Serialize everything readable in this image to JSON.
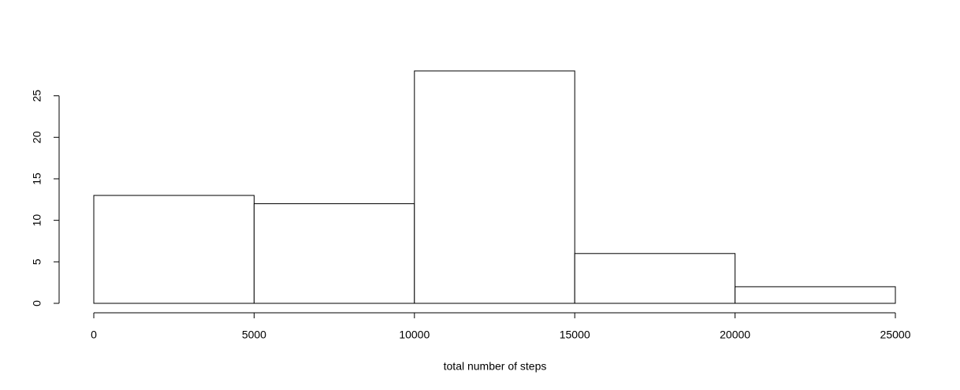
{
  "chart_data": {
    "type": "histogram",
    "x_label": "total number of steps",
    "bins": [
      0,
      5000,
      10000,
      15000,
      20000,
      25000
    ],
    "values": [
      13,
      12,
      28,
      6,
      2
    ],
    "color": "#ffffff",
    "edge_color": "#000000",
    "xlim": [
      0,
      25000
    ],
    "ylim": [
      0,
      28
    ],
    "xticks": [
      0,
      5000,
      10000,
      15000,
      20000,
      25000
    ],
    "yticks": [
      0,
      5,
      10,
      15,
      20,
      25
    ]
  }
}
